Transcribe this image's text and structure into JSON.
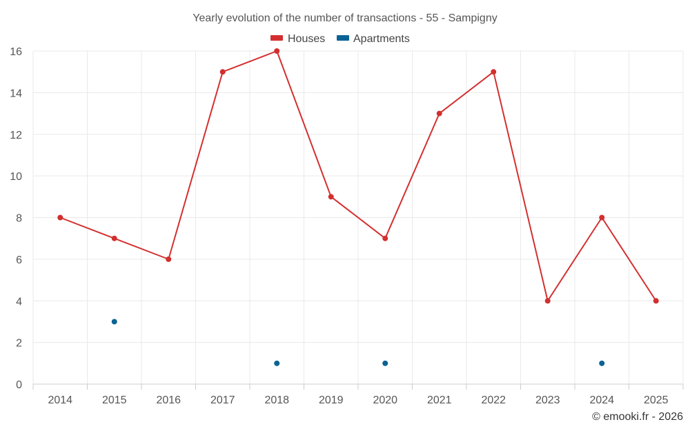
{
  "chart_data": {
    "type": "line",
    "title": "Yearly evolution of the number of transactions - 55 - Sampigny",
    "categories": [
      "2014",
      "2015",
      "2016",
      "2017",
      "2018",
      "2019",
      "2020",
      "2021",
      "2022",
      "2023",
      "2024",
      "2025"
    ],
    "series": [
      {
        "name": "Houses",
        "color": "#d32f2f",
        "values": [
          8,
          7,
          6,
          15,
          16,
          9,
          7,
          13,
          15,
          4,
          8,
          4
        ]
      },
      {
        "name": "Apartments",
        "color": "#0b6395",
        "values": [
          null,
          3,
          null,
          null,
          1,
          null,
          1,
          null,
          null,
          null,
          1,
          null
        ]
      }
    ],
    "yticks": [
      0,
      2,
      4,
      6,
      8,
      10,
      12,
      14,
      16
    ],
    "ylim": [
      0,
      16
    ],
    "xlabel": "",
    "ylabel": "",
    "grid": true,
    "legend": "top-center"
  },
  "credit": "© emooki.fr - 2026"
}
